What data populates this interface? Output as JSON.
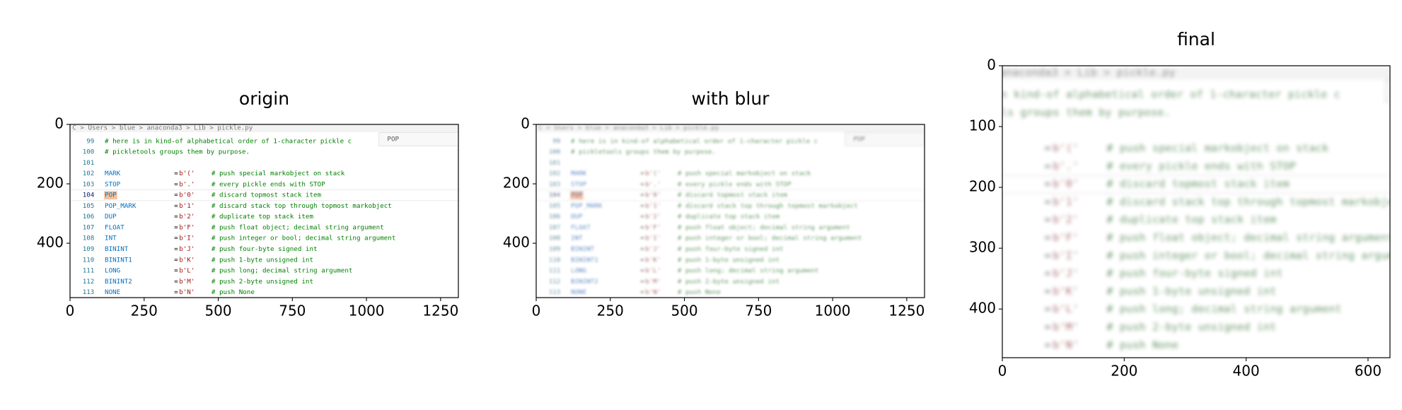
{
  "chart_data": [
    {
      "type": "image",
      "title": "origin",
      "blur": false,
      "xlim": [
        0,
        1310
      ],
      "ylim": [
        583,
        0
      ],
      "xticks": [
        0,
        250,
        500,
        750,
        1000,
        1250
      ],
      "yticks": [
        0,
        200,
        400
      ]
    },
    {
      "type": "image",
      "title": "with blur",
      "blur": true,
      "xlim": [
        0,
        1310
      ],
      "ylim": [
        583,
        0
      ],
      "xticks": [
        0,
        250,
        500,
        750,
        1000,
        1250
      ],
      "yticks": [
        0,
        200,
        400
      ]
    },
    {
      "type": "image",
      "title": "final",
      "blur": true,
      "crop": true,
      "xlim": [
        0,
        636
      ],
      "ylim": [
        480,
        0
      ],
      "xticks": [
        0,
        200,
        400,
        600
      ],
      "yticks": [
        0,
        100,
        200,
        300,
        400
      ]
    }
  ],
  "screenshot": {
    "breadcrumb": "C > Users > blue > anaconda3 > Lib > pickle.py",
    "search": "POP",
    "lines": [
      {
        "num": 99,
        "comment": "# here is in kind-of alphabetical order of 1-character pickle c"
      },
      {
        "num": 100,
        "comment": "# pickletools groups them by purpose."
      },
      {
        "num": 101
      },
      {
        "num": 102,
        "name": "MARK",
        "op": "=",
        "value": "b'('",
        "comment": "# push special markobject on stack"
      },
      {
        "num": 103,
        "name": "STOP",
        "op": "=",
        "value": "b'.'",
        "comment": "# every pickle ends with STOP"
      },
      {
        "num": 104,
        "name": "POP",
        "op": "=",
        "value": "b'0'",
        "comment": "# discard topmost stack item"
      },
      {
        "num": 105,
        "name": "POP_MARK",
        "op": "=",
        "value": "b'1'",
        "comment": "# discard stack top through topmost markobject"
      },
      {
        "num": 106,
        "name": "DUP",
        "op": "=",
        "value": "b'2'",
        "comment": "# duplicate top stack item"
      },
      {
        "num": 107,
        "name": "FLOAT",
        "op": "=",
        "value": "b'F'",
        "comment": "# push float object; decimal string argument"
      },
      {
        "num": 108,
        "name": "INT",
        "op": "=",
        "value": "b'I'",
        "comment": "# push integer or bool; decimal string argument"
      },
      {
        "num": 109,
        "name": "BININT",
        "op": "=",
        "value": "b'J'",
        "comment": "# push four-byte signed int"
      },
      {
        "num": 110,
        "name": "BININT1",
        "op": "=",
        "value": "b'K'",
        "comment": "# push 1-byte unsigned int"
      },
      {
        "num": 111,
        "name": "LONG",
        "op": "=",
        "value": "b'L'",
        "comment": "# push long; decimal string argument"
      },
      {
        "num": 112,
        "name": "BININT2",
        "op": "=",
        "value": "b'M'",
        "comment": "# push 2-byte unsigned int"
      },
      {
        "num": 113,
        "name": "NONE",
        "op": "=",
        "value": "b'N'",
        "comment": "# push None"
      }
    ]
  }
}
